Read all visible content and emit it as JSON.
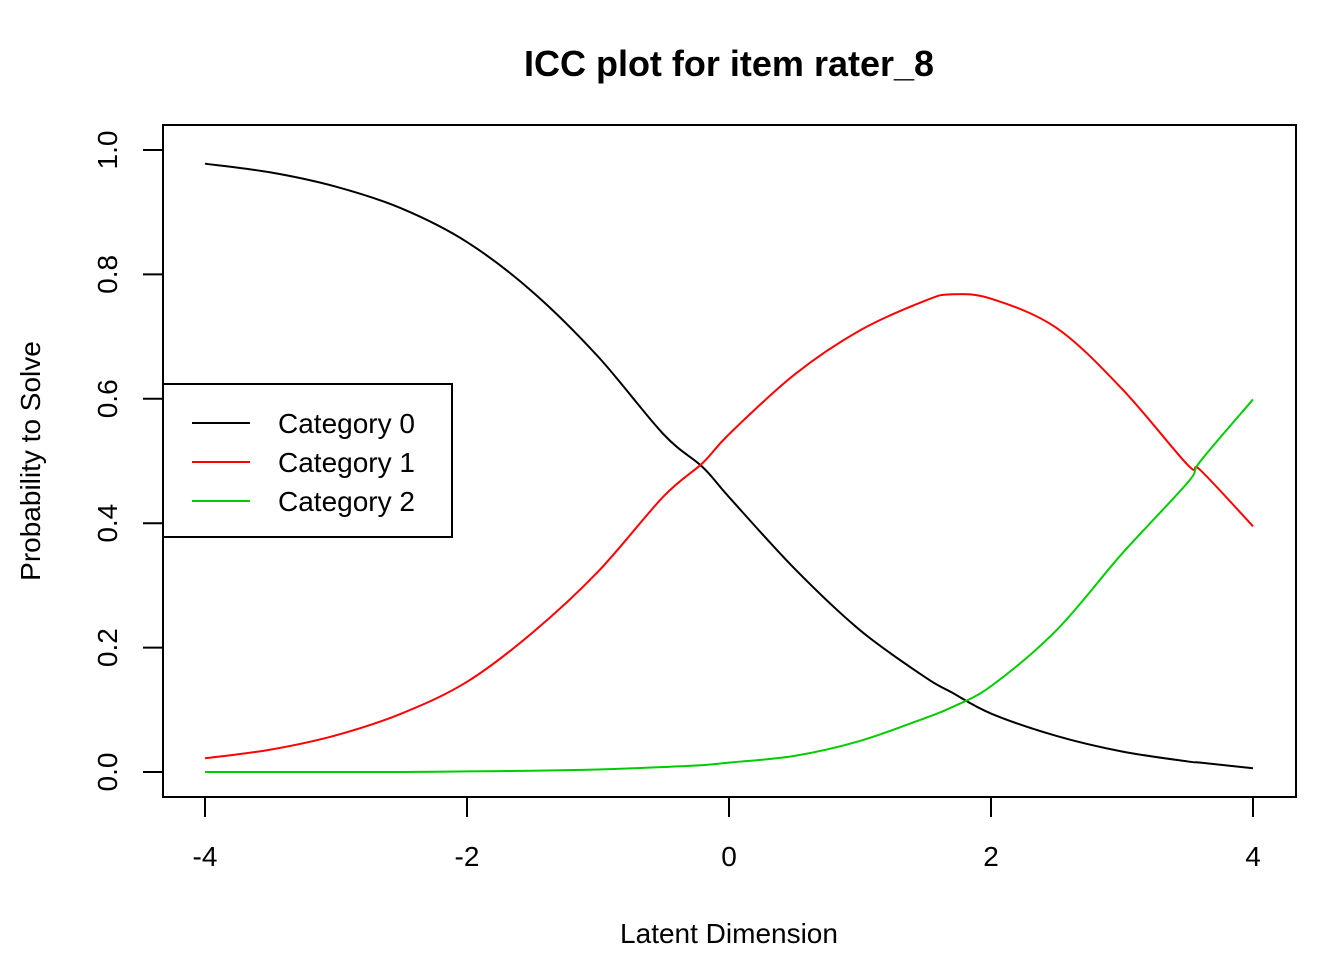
{
  "chart_data": {
    "type": "line",
    "title": "ICC plot for item rater_8",
    "xlabel": "Latent Dimension",
    "ylabel": "Probability to Solve",
    "xlim": [
      -4,
      4
    ],
    "ylim": [
      0,
      1
    ],
    "x_ticks": [
      -4,
      -2,
      0,
      2,
      4
    ],
    "x_tick_labels": [
      "-4",
      "-2",
      "0",
      "2",
      "4"
    ],
    "y_ticks": [
      0,
      0.2,
      0.4,
      0.6,
      0.8,
      1.0
    ],
    "y_tick_labels": [
      "0.0",
      "0.2",
      "0.4",
      "0.6",
      "0.8",
      "1.0"
    ],
    "grid": false,
    "legend_position": "left",
    "x": [
      -4,
      -3.5,
      -3,
      -2.5,
      -2,
      -1.5,
      -1,
      -0.5,
      -0.2,
      0,
      0.5,
      1,
      1.5,
      1.7,
      2,
      2.5,
      3,
      3.5,
      3.6,
      4
    ],
    "series": [
      {
        "name": "Category 0",
        "color": "#000000",
        "values": [
          0.978,
          0.964,
          0.941,
          0.906,
          0.852,
          0.772,
          0.668,
          0.543,
          0.49,
          0.442,
          0.327,
          0.228,
          0.152,
          0.128,
          0.094,
          0.058,
          0.033,
          0.017,
          0.015,
          0.006
        ]
      },
      {
        "name": "Category 1",
        "color": "#ff0000",
        "values": [
          0.022,
          0.036,
          0.059,
          0.094,
          0.145,
          0.224,
          0.322,
          0.443,
          0.497,
          0.543,
          0.639,
          0.71,
          0.758,
          0.768,
          0.761,
          0.714,
          0.616,
          0.494,
          0.485,
          0.395
        ]
      },
      {
        "name": "Category 2",
        "color": "#00cd00",
        "values": [
          0.0,
          0.0,
          0.0,
          0.0,
          0.001,
          0.002,
          0.004,
          0.008,
          0.011,
          0.015,
          0.026,
          0.05,
          0.087,
          0.104,
          0.138,
          0.228,
          0.351,
          0.465,
          0.5,
          0.599
        ]
      }
    ]
  }
}
